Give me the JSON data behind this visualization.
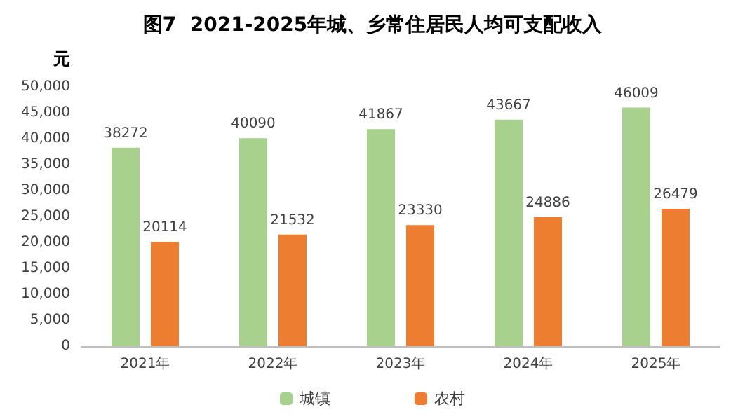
{
  "chart_data": {
    "type": "bar",
    "title": "图7  2021-2025年城、乡常住居民人均可支配收入",
    "ylabel": "元",
    "categories": [
      "2021年",
      "2022年",
      "2023年",
      "2024年",
      "2025年"
    ],
    "series": [
      {
        "name": "城镇",
        "color": "#a9d18e",
        "values": [
          38272,
          40090,
          41867,
          43667,
          46009
        ]
      },
      {
        "name": "农村",
        "color": "#ed7d31",
        "values": [
          20114,
          21532,
          23330,
          24886,
          26479
        ]
      }
    ],
    "ylim": [
      0,
      50000
    ],
    "yticks": [
      {
        "value": 0,
        "label": "0"
      },
      {
        "value": 5000,
        "label": "5,000"
      },
      {
        "value": 10000,
        "label": "10,000"
      },
      {
        "value": 15000,
        "label": "15,000"
      },
      {
        "value": 20000,
        "label": "20,000"
      },
      {
        "value": 25000,
        "label": "25,000"
      },
      {
        "value": 30000,
        "label": "30,000"
      },
      {
        "value": 35000,
        "label": "35,000"
      },
      {
        "value": 40000,
        "label": "40,000"
      },
      {
        "value": 45000,
        "label": "45,000"
      },
      {
        "value": 50000,
        "label": "50,000"
      }
    ],
    "data_labels": true,
    "legend": "bottom",
    "grid": false
  }
}
